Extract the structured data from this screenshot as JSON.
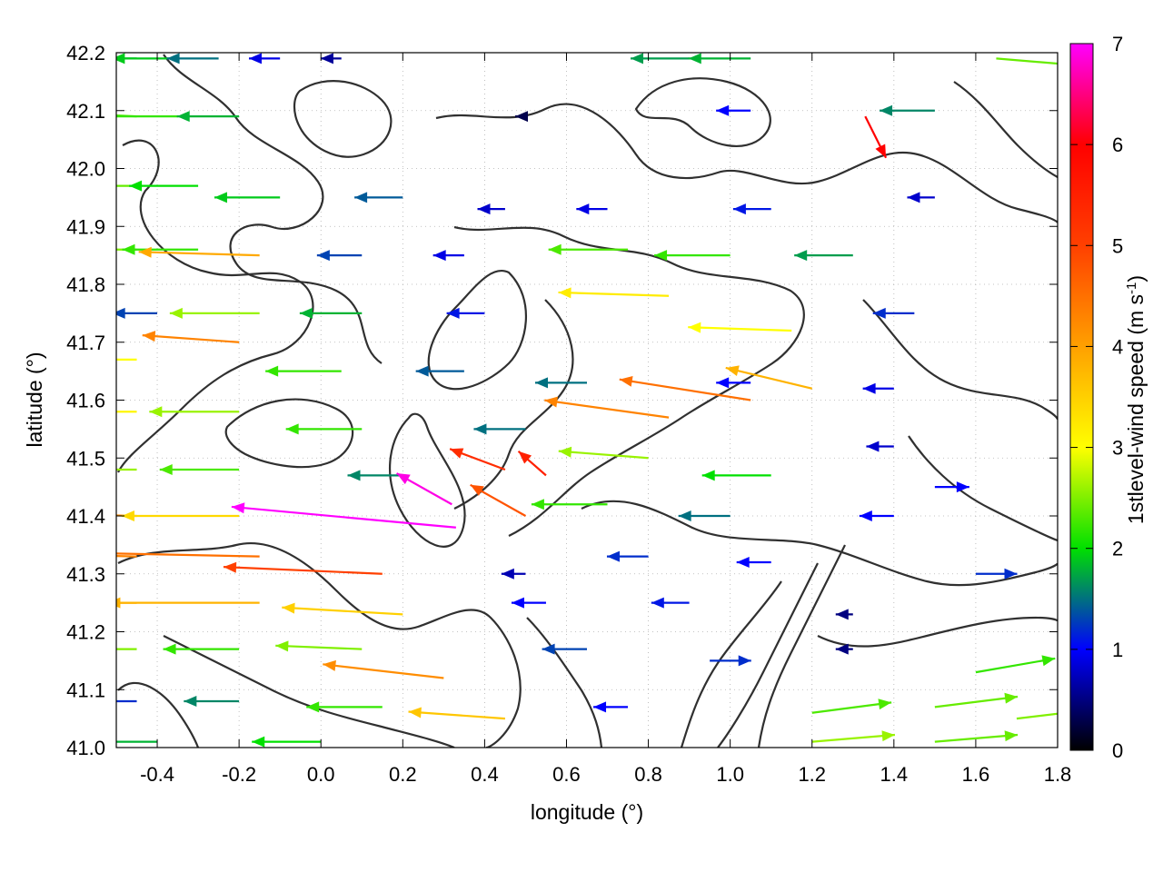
{
  "chart_data": {
    "type": "vector-field",
    "xlabel": "longitude (°)",
    "ylabel": "latitude (°)",
    "colorbar_label": "1stlevel-wind speed (m s-1)",
    "colorbar_label_parts": {
      "main": "1stlevel-wind speed (m s",
      "sup": "-1",
      "end": ")"
    },
    "xlim": [
      -0.5,
      1.8
    ],
    "ylim": [
      41.0,
      42.2
    ],
    "clim": [
      0,
      7
    ],
    "x_ticks": [
      "-0.4",
      "-0.2",
      "0.0",
      "0.2",
      "0.4",
      "0.6",
      "0.8",
      "1.0",
      "1.2",
      "1.4",
      "1.6",
      "1.8"
    ],
    "x_tick_values": [
      -0.4,
      -0.2,
      0.0,
      0.2,
      0.4,
      0.6,
      0.8,
      1.0,
      1.2,
      1.4,
      1.6,
      1.8
    ],
    "y_ticks": [
      "41.0",
      "41.1",
      "41.2",
      "41.3",
      "41.4",
      "41.5",
      "41.6",
      "41.7",
      "41.8",
      "41.9",
      "42.0",
      "42.1",
      "42.2"
    ],
    "y_tick_values": [
      41.0,
      41.1,
      41.2,
      41.3,
      41.4,
      41.5,
      41.6,
      41.7,
      41.8,
      41.9,
      42.0,
      42.1,
      42.2
    ],
    "colorbar_ticks": [
      "0",
      "1",
      "2",
      "3",
      "4",
      "5",
      "6",
      "7"
    ],
    "colorbar_tick_values": [
      0,
      1,
      2,
      3,
      4,
      5,
      6,
      7
    ],
    "colormap": [
      "#000000",
      "#0000ff",
      "#00e000",
      "#ffff00",
      "#ffa000",
      "#ff4000",
      "#ff0000",
      "#ff00ff"
    ],
    "grid": true,
    "contour_color": "#303030",
    "vectors": [
      {
        "lon": -0.45,
        "lat": 42.19,
        "u": -1.8,
        "v": 0.0,
        "speed": 1.8
      },
      {
        "lon": -0.35,
        "lat": 42.19,
        "u": -1.9,
        "v": 0.0,
        "speed": 1.9
      },
      {
        "lon": -0.25,
        "lat": 42.19,
        "u": -1.5,
        "v": 0.0,
        "speed": 1.5
      },
      {
        "lon": -0.1,
        "lat": 42.19,
        "u": -0.9,
        "v": 0.0,
        "speed": 0.9
      },
      {
        "lon": 0.05,
        "lat": 42.19,
        "u": -0.6,
        "v": 0.0,
        "speed": 0.6
      },
      {
        "lon": 0.9,
        "lat": 42.19,
        "u": -1.7,
        "v": 0.0,
        "speed": 1.7
      },
      {
        "lon": 1.05,
        "lat": 42.19,
        "u": -1.8,
        "v": 0.0,
        "speed": 1.8
      },
      {
        "lon": 1.65,
        "lat": 42.19,
        "u": 2.4,
        "v": -0.2,
        "speed": 2.4
      },
      {
        "lon": -0.45,
        "lat": 42.09,
        "u": -2.3,
        "v": 0.1,
        "speed": 2.3
      },
      {
        "lon": -0.35,
        "lat": 42.09,
        "u": -2.2,
        "v": 0.0,
        "speed": 2.2
      },
      {
        "lon": -0.2,
        "lat": 42.09,
        "u": -1.8,
        "v": 0.0,
        "speed": 1.8
      },
      {
        "lon": 0.5,
        "lat": 42.09,
        "u": -0.3,
        "v": 0.0,
        "speed": 0.3
      },
      {
        "lon": 1.05,
        "lat": 42.1,
        "u": -1.0,
        "v": 0.0,
        "speed": 1.0
      },
      {
        "lon": 1.33,
        "lat": 42.09,
        "u": 0.6,
        "v": -1.2,
        "speed": 6.0
      },
      {
        "lon": 1.5,
        "lat": 42.1,
        "u": -1.6,
        "v": 0.0,
        "speed": 1.6
      },
      {
        "lon": -0.45,
        "lat": 41.97,
        "u": -2.4,
        "v": 0.0,
        "speed": 2.4
      },
      {
        "lon": -0.3,
        "lat": 41.97,
        "u": -2.0,
        "v": 0.0,
        "speed": 2.0
      },
      {
        "lon": -0.1,
        "lat": 41.95,
        "u": -1.9,
        "v": 0.0,
        "speed": 1.9
      },
      {
        "lon": 0.2,
        "lat": 41.95,
        "u": -1.4,
        "v": 0.0,
        "speed": 1.4
      },
      {
        "lon": 0.45,
        "lat": 41.93,
        "u": -0.8,
        "v": 0.0,
        "speed": 0.8
      },
      {
        "lon": 0.7,
        "lat": 41.93,
        "u": -0.9,
        "v": 0.0,
        "speed": 0.9
      },
      {
        "lon": 1.1,
        "lat": 41.93,
        "u": -1.1,
        "v": 0.0,
        "speed": 1.1
      },
      {
        "lon": 1.5,
        "lat": 41.95,
        "u": -0.8,
        "v": 0.0,
        "speed": 0.8
      },
      {
        "lon": -0.45,
        "lat": 41.86,
        "u": -2.5,
        "v": 0.0,
        "speed": 2.5
      },
      {
        "lon": -0.3,
        "lat": 41.86,
        "u": -2.2,
        "v": 0.0,
        "speed": 2.2
      },
      {
        "lon": -0.15,
        "lat": 41.85,
        "u": -3.5,
        "v": 0.1,
        "speed": 3.9
      },
      {
        "lon": 0.1,
        "lat": 41.85,
        "u": -1.3,
        "v": 0.0,
        "speed": 1.3
      },
      {
        "lon": 0.35,
        "lat": 41.85,
        "u": -0.9,
        "v": 0.0,
        "speed": 0.9
      },
      {
        "lon": 0.75,
        "lat": 41.86,
        "u": -2.3,
        "v": 0.0,
        "speed": 2.3
      },
      {
        "lon": 1.0,
        "lat": 41.85,
        "u": -2.2,
        "v": 0.0,
        "speed": 2.2
      },
      {
        "lon": 1.3,
        "lat": 41.85,
        "u": -1.7,
        "v": 0.0,
        "speed": 1.7
      },
      {
        "lon": -0.4,
        "lat": 41.75,
        "u": -1.3,
        "v": 0.0,
        "speed": 1.3
      },
      {
        "lon": -0.15,
        "lat": 41.75,
        "u": -2.6,
        "v": 0.0,
        "speed": 2.6
      },
      {
        "lon": 0.1,
        "lat": 41.75,
        "u": -1.8,
        "v": 0.0,
        "speed": 1.8
      },
      {
        "lon": 0.4,
        "lat": 41.75,
        "u": -1.1,
        "v": 0.0,
        "speed": 1.1
      },
      {
        "lon": 0.85,
        "lat": 41.78,
        "u": -3.2,
        "v": 0.1,
        "speed": 3.2
      },
      {
        "lon": 1.15,
        "lat": 41.72,
        "u": -3.0,
        "v": 0.1,
        "speed": 3.0
      },
      {
        "lon": 1.45,
        "lat": 41.75,
        "u": -1.2,
        "v": 0.0,
        "speed": 1.2
      },
      {
        "lon": -0.45,
        "lat": 41.67,
        "u": -3.0,
        "v": 0.0,
        "speed": 3.0
      },
      {
        "lon": -0.2,
        "lat": 41.7,
        "u": -2.8,
        "v": 0.2,
        "speed": 4.3
      },
      {
        "lon": 0.05,
        "lat": 41.65,
        "u": -2.2,
        "v": 0.0,
        "speed": 2.2
      },
      {
        "lon": 0.35,
        "lat": 41.65,
        "u": -1.4,
        "v": 0.0,
        "speed": 1.4
      },
      {
        "lon": 0.65,
        "lat": 41.63,
        "u": -1.5,
        "v": 0.0,
        "speed": 1.5
      },
      {
        "lon": 1.05,
        "lat": 41.63,
        "u": -1.0,
        "v": 0.0,
        "speed": 1.0
      },
      {
        "lon": 1.4,
        "lat": 41.62,
        "u": -0.9,
        "v": 0.0,
        "speed": 0.9
      },
      {
        "lon": -0.45,
        "lat": 41.58,
        "u": -3.1,
        "v": 0.0,
        "speed": 3.1
      },
      {
        "lon": -0.2,
        "lat": 41.58,
        "u": -2.6,
        "v": 0.0,
        "speed": 2.6
      },
      {
        "lon": 0.1,
        "lat": 41.55,
        "u": -2.2,
        "v": 0.0,
        "speed": 2.2
      },
      {
        "lon": 0.5,
        "lat": 41.55,
        "u": -1.5,
        "v": 0.0,
        "speed": 1.5
      },
      {
        "lon": 0.85,
        "lat": 41.57,
        "u": -3.6,
        "v": 0.5,
        "speed": 4.3
      },
      {
        "lon": 1.05,
        "lat": 41.6,
        "u": -3.8,
        "v": 0.6,
        "speed": 4.5
      },
      {
        "lon": 1.2,
        "lat": 41.62,
        "u": -2.5,
        "v": 0.6,
        "speed": 3.8
      },
      {
        "lon": 1.4,
        "lat": 41.52,
        "u": -0.8,
        "v": 0.0,
        "speed": 0.8
      },
      {
        "lon": -0.45,
        "lat": 41.48,
        "u": -2.6,
        "v": 0.0,
        "speed": 2.6
      },
      {
        "lon": -0.2,
        "lat": 41.48,
        "u": -2.3,
        "v": 0.0,
        "speed": 2.3
      },
      {
        "lon": 0.2,
        "lat": 41.47,
        "u": -1.6,
        "v": 0.0,
        "speed": 1.6
      },
      {
        "lon": 0.45,
        "lat": 41.48,
        "u": -1.6,
        "v": 0.6,
        "speed": 5.3
      },
      {
        "lon": 0.55,
        "lat": 41.47,
        "u": -0.8,
        "v": 0.7,
        "speed": 5.5
      },
      {
        "lon": 0.8,
        "lat": 41.5,
        "u": -2.6,
        "v": 0.2,
        "speed": 2.6
      },
      {
        "lon": 1.1,
        "lat": 41.47,
        "u": -2.0,
        "v": 0.0,
        "speed": 2.0
      },
      {
        "lon": 1.5,
        "lat": 41.45,
        "u": 1.0,
        "v": 0.0,
        "speed": 1.0
      },
      {
        "lon": -0.45,
        "lat": 41.4,
        "u": -4.0,
        "v": 0.1,
        "speed": 4.2
      },
      {
        "lon": -0.2,
        "lat": 41.4,
        "u": -3.4,
        "v": 0.0,
        "speed": 3.4
      },
      {
        "lon": 0.33,
        "lat": 41.38,
        "u": -6.5,
        "v": 0.6,
        "speed": 7.0
      },
      {
        "lon": 0.32,
        "lat": 41.42,
        "u": -1.6,
        "v": 0.9,
        "speed": 6.9
      },
      {
        "lon": 0.5,
        "lat": 41.4,
        "u": -1.6,
        "v": 0.9,
        "speed": 4.8
      },
      {
        "lon": 0.7,
        "lat": 41.42,
        "u": -2.2,
        "v": 0.0,
        "speed": 2.2
      },
      {
        "lon": 1.0,
        "lat": 41.4,
        "u": -1.5,
        "v": 0.0,
        "speed": 1.5
      },
      {
        "lon": 1.4,
        "lat": 41.4,
        "u": -1.0,
        "v": 0.0,
        "speed": 1.0
      },
      {
        "lon": -0.45,
        "lat": 41.33,
        "u": -4.5,
        "v": 0.1,
        "speed": 4.3
      },
      {
        "lon": -0.15,
        "lat": 41.33,
        "u": -4.8,
        "v": 0.1,
        "speed": 4.5
      },
      {
        "lon": 0.15,
        "lat": 41.3,
        "u": -4.6,
        "v": 0.2,
        "speed": 5.0
      },
      {
        "lon": 0.5,
        "lat": 41.3,
        "u": -0.7,
        "v": 0.0,
        "speed": 0.7
      },
      {
        "lon": 0.8,
        "lat": 41.33,
        "u": -1.2,
        "v": 0.0,
        "speed": 1.2
      },
      {
        "lon": 1.1,
        "lat": 41.32,
        "u": -1.0,
        "v": 0.0,
        "speed": 1.0
      },
      {
        "lon": 1.6,
        "lat": 41.3,
        "u": 1.2,
        "v": 0.0,
        "speed": 1.2
      },
      {
        "lon": -0.45,
        "lat": 41.25,
        "u": -4.6,
        "v": 0.0,
        "speed": 4.0
      },
      {
        "lon": -0.15,
        "lat": 41.25,
        "u": -4.4,
        "v": 0.0,
        "speed": 3.8
      },
      {
        "lon": 0.2,
        "lat": 41.23,
        "u": -3.5,
        "v": 0.2,
        "speed": 3.5
      },
      {
        "lon": 0.55,
        "lat": 41.25,
        "u": -1.0,
        "v": 0.0,
        "speed": 1.0
      },
      {
        "lon": 0.9,
        "lat": 41.25,
        "u": -1.1,
        "v": 0.0,
        "speed": 1.1
      },
      {
        "lon": 1.3,
        "lat": 41.23,
        "u": -0.5,
        "v": 0.0,
        "speed": 0.5
      },
      {
        "lon": -0.45,
        "lat": 41.17,
        "u": -2.5,
        "v": 0.0,
        "speed": 2.5
      },
      {
        "lon": -0.2,
        "lat": 41.17,
        "u": -2.2,
        "v": 0.0,
        "speed": 2.2
      },
      {
        "lon": 0.1,
        "lat": 41.17,
        "u": -2.5,
        "v": 0.1,
        "speed": 2.5
      },
      {
        "lon": 0.3,
        "lat": 41.12,
        "u": -3.5,
        "v": 0.4,
        "speed": 4.2
      },
      {
        "lon": 0.65,
        "lat": 41.17,
        "u": -1.3,
        "v": 0.0,
        "speed": 1.3
      },
      {
        "lon": 0.95,
        "lat": 41.15,
        "u": 1.2,
        "v": 0.0,
        "speed": 1.2
      },
      {
        "lon": 1.3,
        "lat": 41.17,
        "u": -0.5,
        "v": 0.0,
        "speed": 0.5
      },
      {
        "lon": 1.6,
        "lat": 41.13,
        "u": 2.3,
        "v": 0.4,
        "speed": 2.2
      },
      {
        "lon": -0.45,
        "lat": 41.08,
        "u": -1.2,
        "v": 0.0,
        "speed": 1.2
      },
      {
        "lon": -0.2,
        "lat": 41.08,
        "u": -1.6,
        "v": 0.0,
        "speed": 1.6
      },
      {
        "lon": 0.15,
        "lat": 41.07,
        "u": -2.2,
        "v": 0.0,
        "speed": 2.2
      },
      {
        "lon": 0.45,
        "lat": 41.05,
        "u": -2.8,
        "v": 0.2,
        "speed": 3.6
      },
      {
        "lon": 0.75,
        "lat": 41.07,
        "u": -1.0,
        "v": 0.0,
        "speed": 1.0
      },
      {
        "lon": 1.2,
        "lat": 41.06,
        "u": 2.3,
        "v": 0.3,
        "speed": 2.3
      },
      {
        "lon": 1.5,
        "lat": 41.07,
        "u": 2.4,
        "v": 0.3,
        "speed": 2.4
      },
      {
        "lon": 1.7,
        "lat": 41.05,
        "u": 2.5,
        "v": 0.3,
        "speed": 2.5
      },
      {
        "lon": 1.2,
        "lat": 41.01,
        "u": 2.4,
        "v": 0.2,
        "speed": 2.6
      },
      {
        "lon": 1.5,
        "lat": 41.01,
        "u": 2.4,
        "v": 0.2,
        "speed": 2.4
      },
      {
        "lon": -0.4,
        "lat": 41.01,
        "u": -1.8,
        "v": 0.0,
        "speed": 1.8
      },
      {
        "lon": 0.0,
        "lat": 41.01,
        "u": -2.0,
        "v": 0.0,
        "speed": 2.0
      }
    ]
  }
}
